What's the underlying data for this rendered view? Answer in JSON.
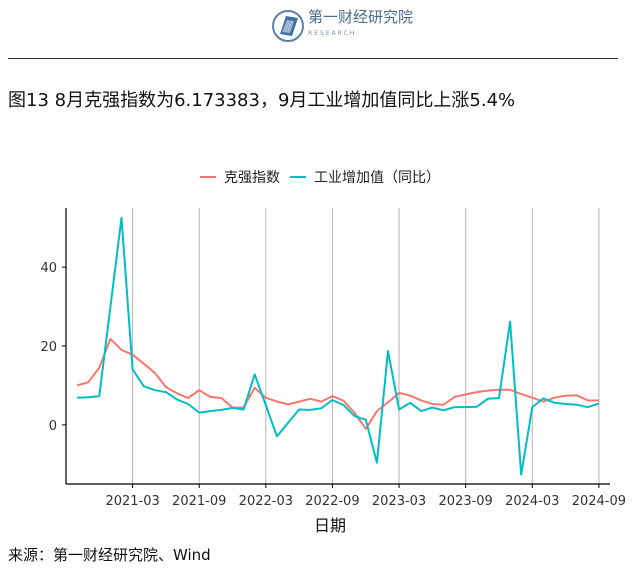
{
  "header": {
    "logo_text": "第一财经研究院",
    "logo_sub": "RESEARCH"
  },
  "title": "图13 8月克强指数为6.173383，9月工业增加值同比上涨5.4%",
  "source": "来源：第一财经研究院、Wind",
  "colors": {
    "series_1": "#F8766D",
    "series_2": "#00BFC4",
    "vgrid": "#b3b3b3",
    "axis": "#000000"
  },
  "chart_data": {
    "type": "line",
    "xlabel": "日期",
    "ylabel": "",
    "x_ticks": [
      "2021-03",
      "2021-09",
      "2022-03",
      "2022-09",
      "2023-03",
      "2023-09",
      "2024-03",
      "2024-09"
    ],
    "y_ticks": [
      0,
      20,
      40
    ],
    "ylim": [
      -15,
      55
    ],
    "xlim": [
      "2020-09",
      "2024-10"
    ],
    "grid": "vertical-at-x-ticks",
    "legend_position": "top",
    "x": [
      "2020-10",
      "2020-11",
      "2020-12",
      "2021-01",
      "2021-02",
      "2021-03",
      "2021-04",
      "2021-05",
      "2021-06",
      "2021-07",
      "2021-08",
      "2021-09",
      "2021-10",
      "2021-11",
      "2021-12",
      "2022-01",
      "2022-02",
      "2022-03",
      "2022-04",
      "2022-05",
      "2022-06",
      "2022-07",
      "2022-08",
      "2022-09",
      "2022-10",
      "2022-11",
      "2022-12",
      "2023-01",
      "2023-02",
      "2023-03",
      "2023-04",
      "2023-05",
      "2023-06",
      "2023-07",
      "2023-08",
      "2023-09",
      "2023-10",
      "2023-11",
      "2023-12",
      "2024-01",
      "2024-02",
      "2024-03",
      "2024-04",
      "2024-05",
      "2024-06",
      "2024-07",
      "2024-08",
      "2024-09"
    ],
    "series": [
      {
        "name": "克强指数",
        "values": [
          10.0,
          10.8,
          14.5,
          21.8,
          19.0,
          17.8,
          15.5,
          13.2,
          9.6,
          8.0,
          6.8,
          8.8,
          7.1,
          6.8,
          4.4,
          4.4,
          9.4,
          6.9,
          5.9,
          5.2,
          5.9,
          6.6,
          5.9,
          7.3,
          6.1,
          3.0,
          -1.0,
          3.5,
          5.7,
          8.1,
          7.4,
          6.2,
          5.3,
          5.1,
          7.1,
          7.7,
          8.3,
          8.7,
          8.9,
          8.9,
          7.8,
          6.9,
          5.9,
          6.9,
          7.4,
          7.5,
          6.2,
          6.17
        ]
      },
      {
        "name": "工业增加值（同比）",
        "values": [
          6.9,
          7.0,
          7.3,
          null,
          52.5,
          14.1,
          9.8,
          8.8,
          8.3,
          6.4,
          5.3,
          3.1,
          3.5,
          3.8,
          4.3,
          3.9,
          12.8,
          5.0,
          -2.9,
          null,
          3.9,
          3.8,
          4.2,
          6.3,
          5.0,
          2.2,
          1.3,
          -9.6,
          18.7,
          3.9,
          5.6,
          3.5,
          4.4,
          3.7,
          4.5,
          4.5,
          4.6,
          6.6,
          6.8,
          26.2,
          -12.6,
          4.5,
          6.7,
          5.6,
          5.3,
          5.1,
          4.5,
          5.4
        ]
      }
    ]
  }
}
